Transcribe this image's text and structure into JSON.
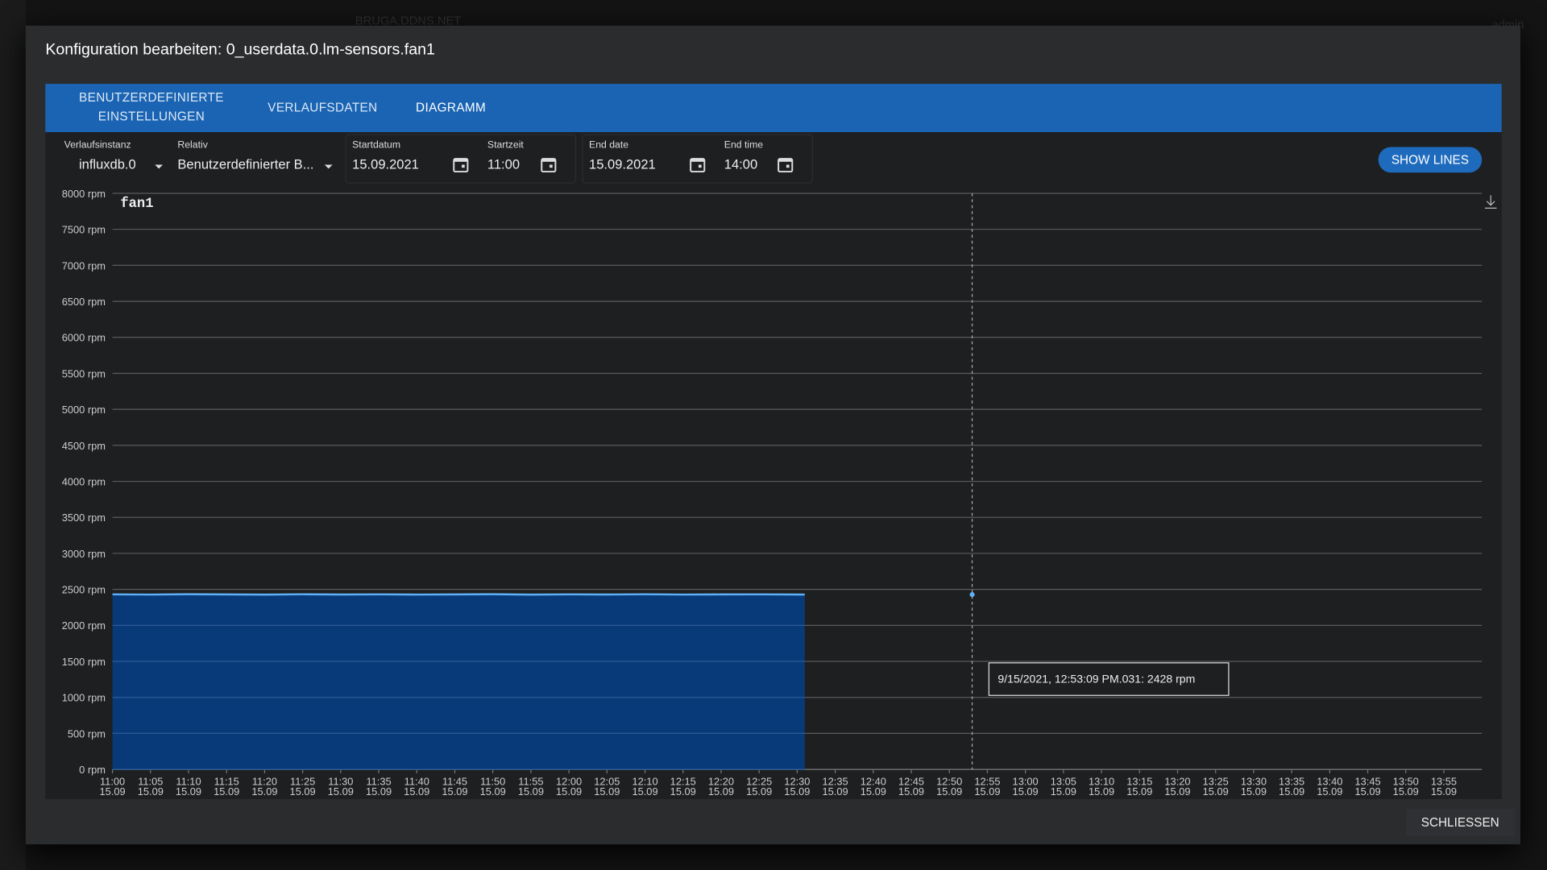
{
  "header": {
    "host": "BRUGA.DDNS.NET",
    "user": "admin"
  },
  "dialog": {
    "title": "Konfiguration bearbeiten: 0_userdata.0.lm-sensors.fan1",
    "tabs": [
      "BENUTZERDEFINIERTE EINSTELLUNGEN",
      "VERLAUFSDATEN",
      "DIAGRAMM"
    ],
    "fields": [
      {
        "label": "Verlaufsinstanz",
        "value": "influxdb.0"
      },
      {
        "label": "Relativ",
        "value": "Benutzerdefinierter B..."
      },
      {
        "label": "Startdatum",
        "value": "15.09.2021"
      },
      {
        "label": "Startzeit",
        "value": "11:00"
      },
      {
        "label": "End date",
        "value": "15.09.2021"
      },
      {
        "label": "End time",
        "value": "14:00"
      }
    ],
    "show_lines": "SHOW LINES",
    "close": "SCHLIESSEN"
  },
  "chart_data": {
    "type": "area",
    "title": "fan1",
    "color": "#5fb0f5",
    "fill": "#083a7a",
    "x": [
      "11:00",
      "11:05",
      "11:10",
      "11:15",
      "11:20",
      "11:25",
      "11:30",
      "11:35",
      "11:40",
      "11:45",
      "11:50",
      "11:55",
      "12:00",
      "12:05",
      "12:10",
      "12:15",
      "12:20",
      "12:25",
      "12:30",
      "12:31"
    ],
    "values": [
      2431,
      2428,
      2433,
      2430,
      2427,
      2432,
      2429,
      2431,
      2428,
      2430,
      2433,
      2427,
      2431,
      2429,
      2432,
      2428,
      2430,
      2431,
      2429,
      2428
    ],
    "xlim": [
      "11:00",
      "14:00"
    ],
    "xticks": [
      "11:00",
      "11:05",
      "11:10",
      "11:15",
      "11:20",
      "11:25",
      "11:30",
      "11:35",
      "11:40",
      "11:45",
      "11:50",
      "11:55",
      "12:00",
      "12:05",
      "12:10",
      "12:15",
      "12:20",
      "12:25",
      "12:30",
      "12:35",
      "12:40",
      "12:45",
      "12:50",
      "12:55",
      "13:00",
      "13:05",
      "13:10",
      "13:15",
      "13:20",
      "13:25",
      "13:30",
      "13:35",
      "13:40",
      "13:45",
      "13:50",
      "13:55"
    ],
    "x_date": "15.09",
    "ylim": [
      0,
      8000
    ],
    "yticks": [
      {
        "value": 0,
        "label": "0 rpm"
      },
      {
        "value": 500,
        "label": "500 rpm"
      },
      {
        "value": 1000,
        "label": "1000 rpm"
      },
      {
        "value": 1500,
        "label": "1500 rpm"
      },
      {
        "value": 2000,
        "label": "2000 rpm"
      },
      {
        "value": 2500,
        "label": "2500 rpm"
      },
      {
        "value": 3000,
        "label": "3000 rpm"
      },
      {
        "value": 3500,
        "label": "3500 rpm"
      },
      {
        "value": 4000,
        "label": "4000 rpm"
      },
      {
        "value": 4500,
        "label": "4500 rpm"
      },
      {
        "value": 5000,
        "label": "5000 rpm"
      },
      {
        "value": 5500,
        "label": "5500 rpm"
      },
      {
        "value": 6000,
        "label": "6000 rpm"
      },
      {
        "value": 6500,
        "label": "6500 rpm"
      },
      {
        "value": 7000,
        "label": "7000 rpm"
      },
      {
        "value": 7500,
        "label": "7500 rpm"
      },
      {
        "value": 8000,
        "label": "8000 rpm"
      }
    ],
    "grid": true,
    "annotation": {
      "x": "12:53",
      "y": 2428,
      "text": "9/15/2021, 12:53:09 PM.031: 2428 rpm"
    }
  }
}
